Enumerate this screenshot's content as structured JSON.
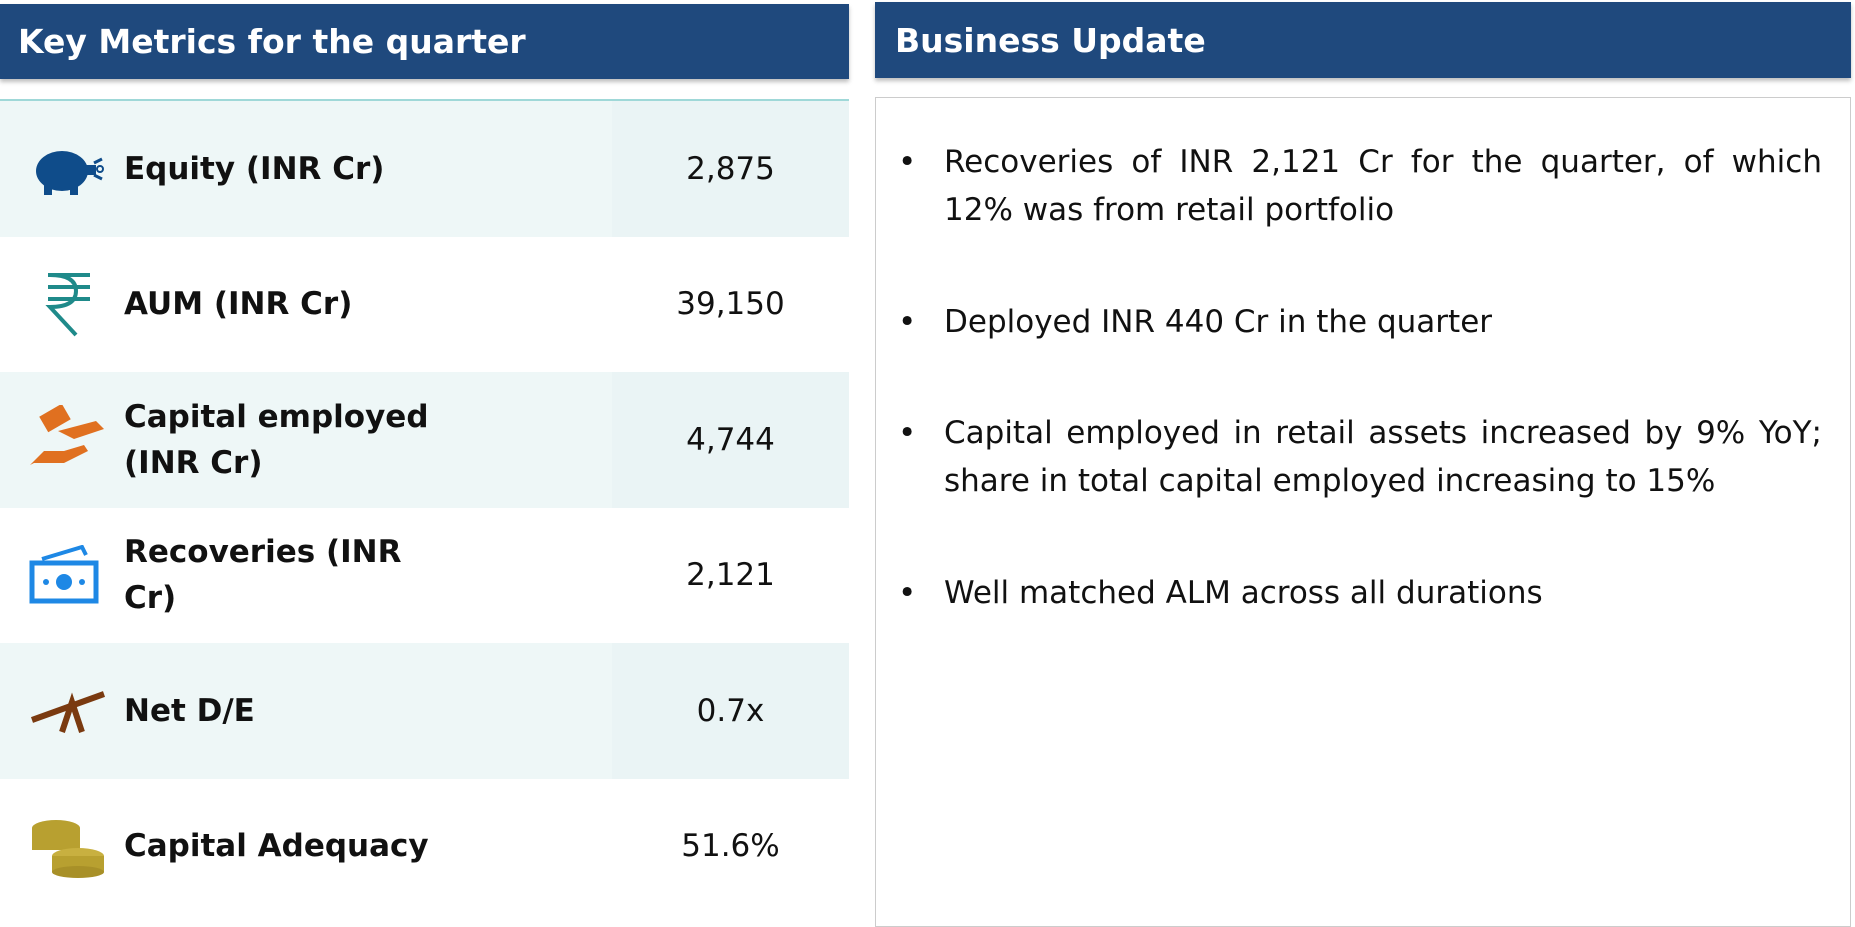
{
  "left": {
    "title": "Key Metrics for the quarter",
    "rows": [
      {
        "label": "Equity (INR Cr)",
        "value": "2,875"
      },
      {
        "label": "AUM (INR Cr)",
        "value": "39,150"
      },
      {
        "label": "Capital employed (INR Cr)",
        "value": "4,744"
      },
      {
        "label": "Recoveries (INR Cr)",
        "value": "2,121"
      },
      {
        "label": "Net D/E",
        "value": "0.7x"
      },
      {
        "label": "Capital Adequacy",
        "value": "51.6%"
      }
    ]
  },
  "right": {
    "title": "Business Update",
    "bullets": [
      "Recoveries of INR 2,121 Cr for the quarter, of which 12% was from retail portfolio",
      "Deployed INR 440 Cr in the quarter",
      "Capital employed in retail assets increased by 9% YoY; share in total capital employed increasing to 15%",
      "Well matched ALM across all durations"
    ]
  }
}
